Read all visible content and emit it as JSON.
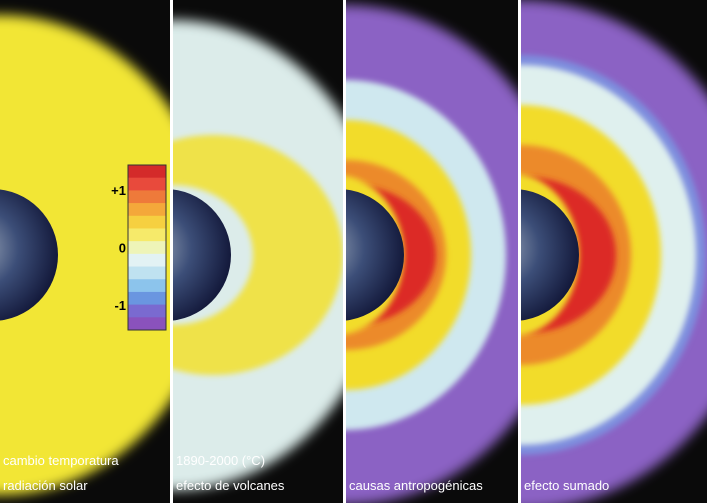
{
  "panels": [
    {
      "caption": [
        "cambio temporatura",
        "radiación solar"
      ]
    },
    {
      "caption": [
        "1890-2000 (°C)",
        "efecto de volcanes"
      ]
    },
    {
      "caption": [
        "causas antropogénicas"
      ]
    },
    {
      "caption": [
        "efecto sumado"
      ]
    }
  ],
  "colorbar": {
    "labels": [
      "+1",
      "0",
      "-1"
    ]
  }
}
